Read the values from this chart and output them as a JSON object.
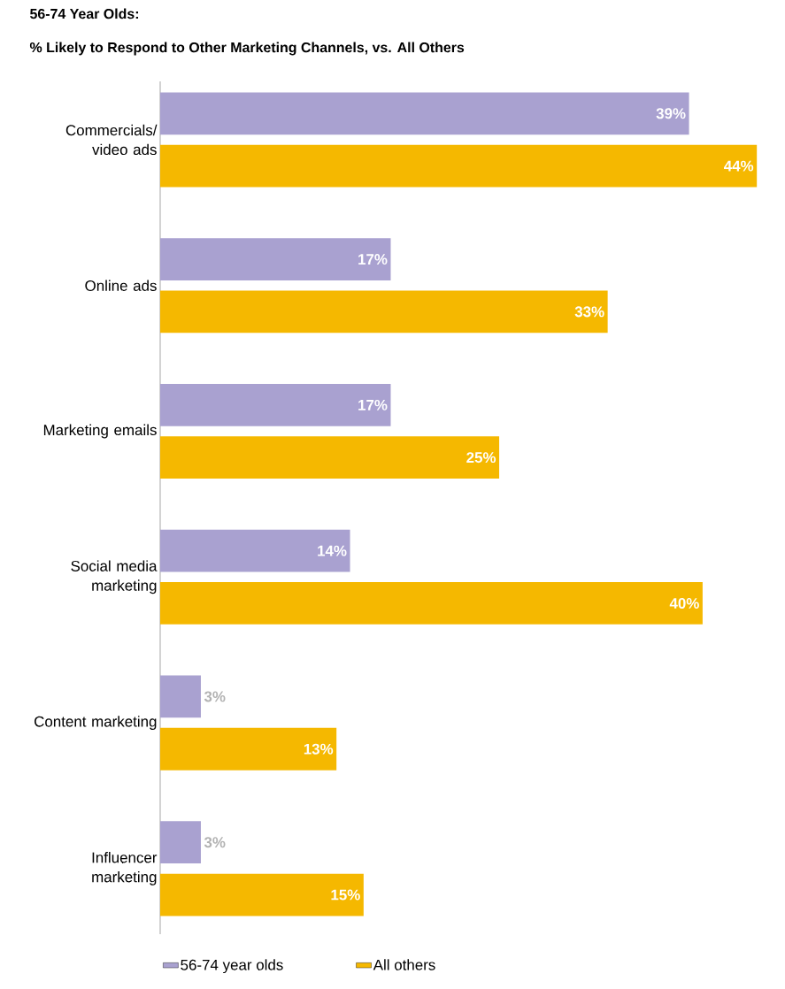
{
  "chart_data": {
    "type": "bar",
    "orientation": "horizontal",
    "title": "56-74 Year Olds:",
    "subtitle": "% Likely to Respond to Other Marketing Channels, vs. All Others",
    "categories": [
      "Commercials/ video ads",
      "Online ads",
      "Marketing emails",
      "Social media marketing",
      "Content marketing",
      "Influencer marketing"
    ],
    "series": [
      {
        "name": "56-74 year olds",
        "color": "#a9a1d0",
        "values": [
          39,
          17,
          17,
          14,
          3,
          3
        ],
        "value_labels": [
          "39%",
          "17%",
          "17%",
          "14%",
          "3%",
          "3%"
        ]
      },
      {
        "name": "All others",
        "color": "#f5b800",
        "values": [
          44,
          33,
          25,
          40,
          13,
          15
        ],
        "value_labels": [
          "44%",
          "33%",
          "25%",
          "40%",
          "13%",
          "15%"
        ]
      }
    ],
    "legend": "bottom"
  }
}
